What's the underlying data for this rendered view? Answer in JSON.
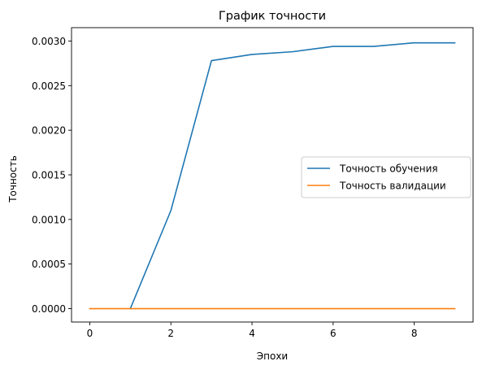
{
  "chart_data": {
    "type": "line",
    "title": "График точности",
    "xlabel": "Эпохи",
    "ylabel": "Точность",
    "x": [
      0,
      1,
      2,
      3,
      4,
      5,
      6,
      7,
      8,
      9
    ],
    "xlim": [
      -0.45,
      9.45
    ],
    "ylim": [
      -0.00015,
      0.00315
    ],
    "xticks": [
      0,
      2,
      4,
      6,
      8
    ],
    "xtick_labels": [
      "0",
      "2",
      "4",
      "6",
      "8"
    ],
    "yticks": [
      0,
      0.0005,
      0.001,
      0.0015,
      0.002,
      0.0025,
      0.003
    ],
    "ytick_labels": [
      "0.0000",
      "0.0005",
      "0.0010",
      "0.0015",
      "0.0020",
      "0.0025",
      "0.0030"
    ],
    "grid": false,
    "legend_position": "center-right",
    "series": [
      {
        "name": "Точность обучения",
        "color": "#1f77b4",
        "values": [
          null,
          0.0,
          0.0011,
          0.00278,
          0.00285,
          0.00288,
          0.00294,
          0.00294,
          0.00298,
          0.00298
        ]
      },
      {
        "name": "Точность валидации",
        "color": "#ff7f0e",
        "values": [
          0,
          0,
          0,
          0,
          0,
          0,
          0,
          0,
          0,
          0
        ]
      }
    ]
  }
}
